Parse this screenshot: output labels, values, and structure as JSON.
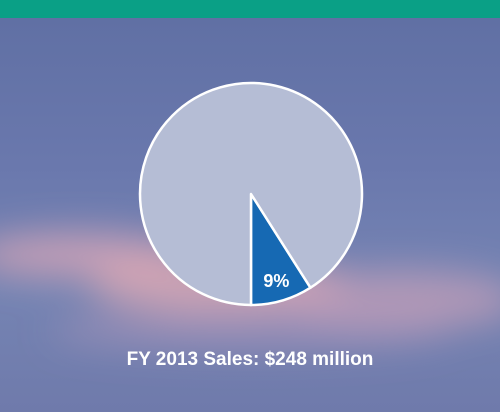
{
  "chart_data": {
    "type": "pie",
    "title": "FY 2013 Sales: $248 million",
    "values": [
      9,
      91
    ],
    "value_labels": [
      "9%",
      null
    ],
    "colors": [
      "#1669b3",
      "#b5bdd5"
    ],
    "start_angle": 180,
    "direction": "counterclockwise"
  }
}
